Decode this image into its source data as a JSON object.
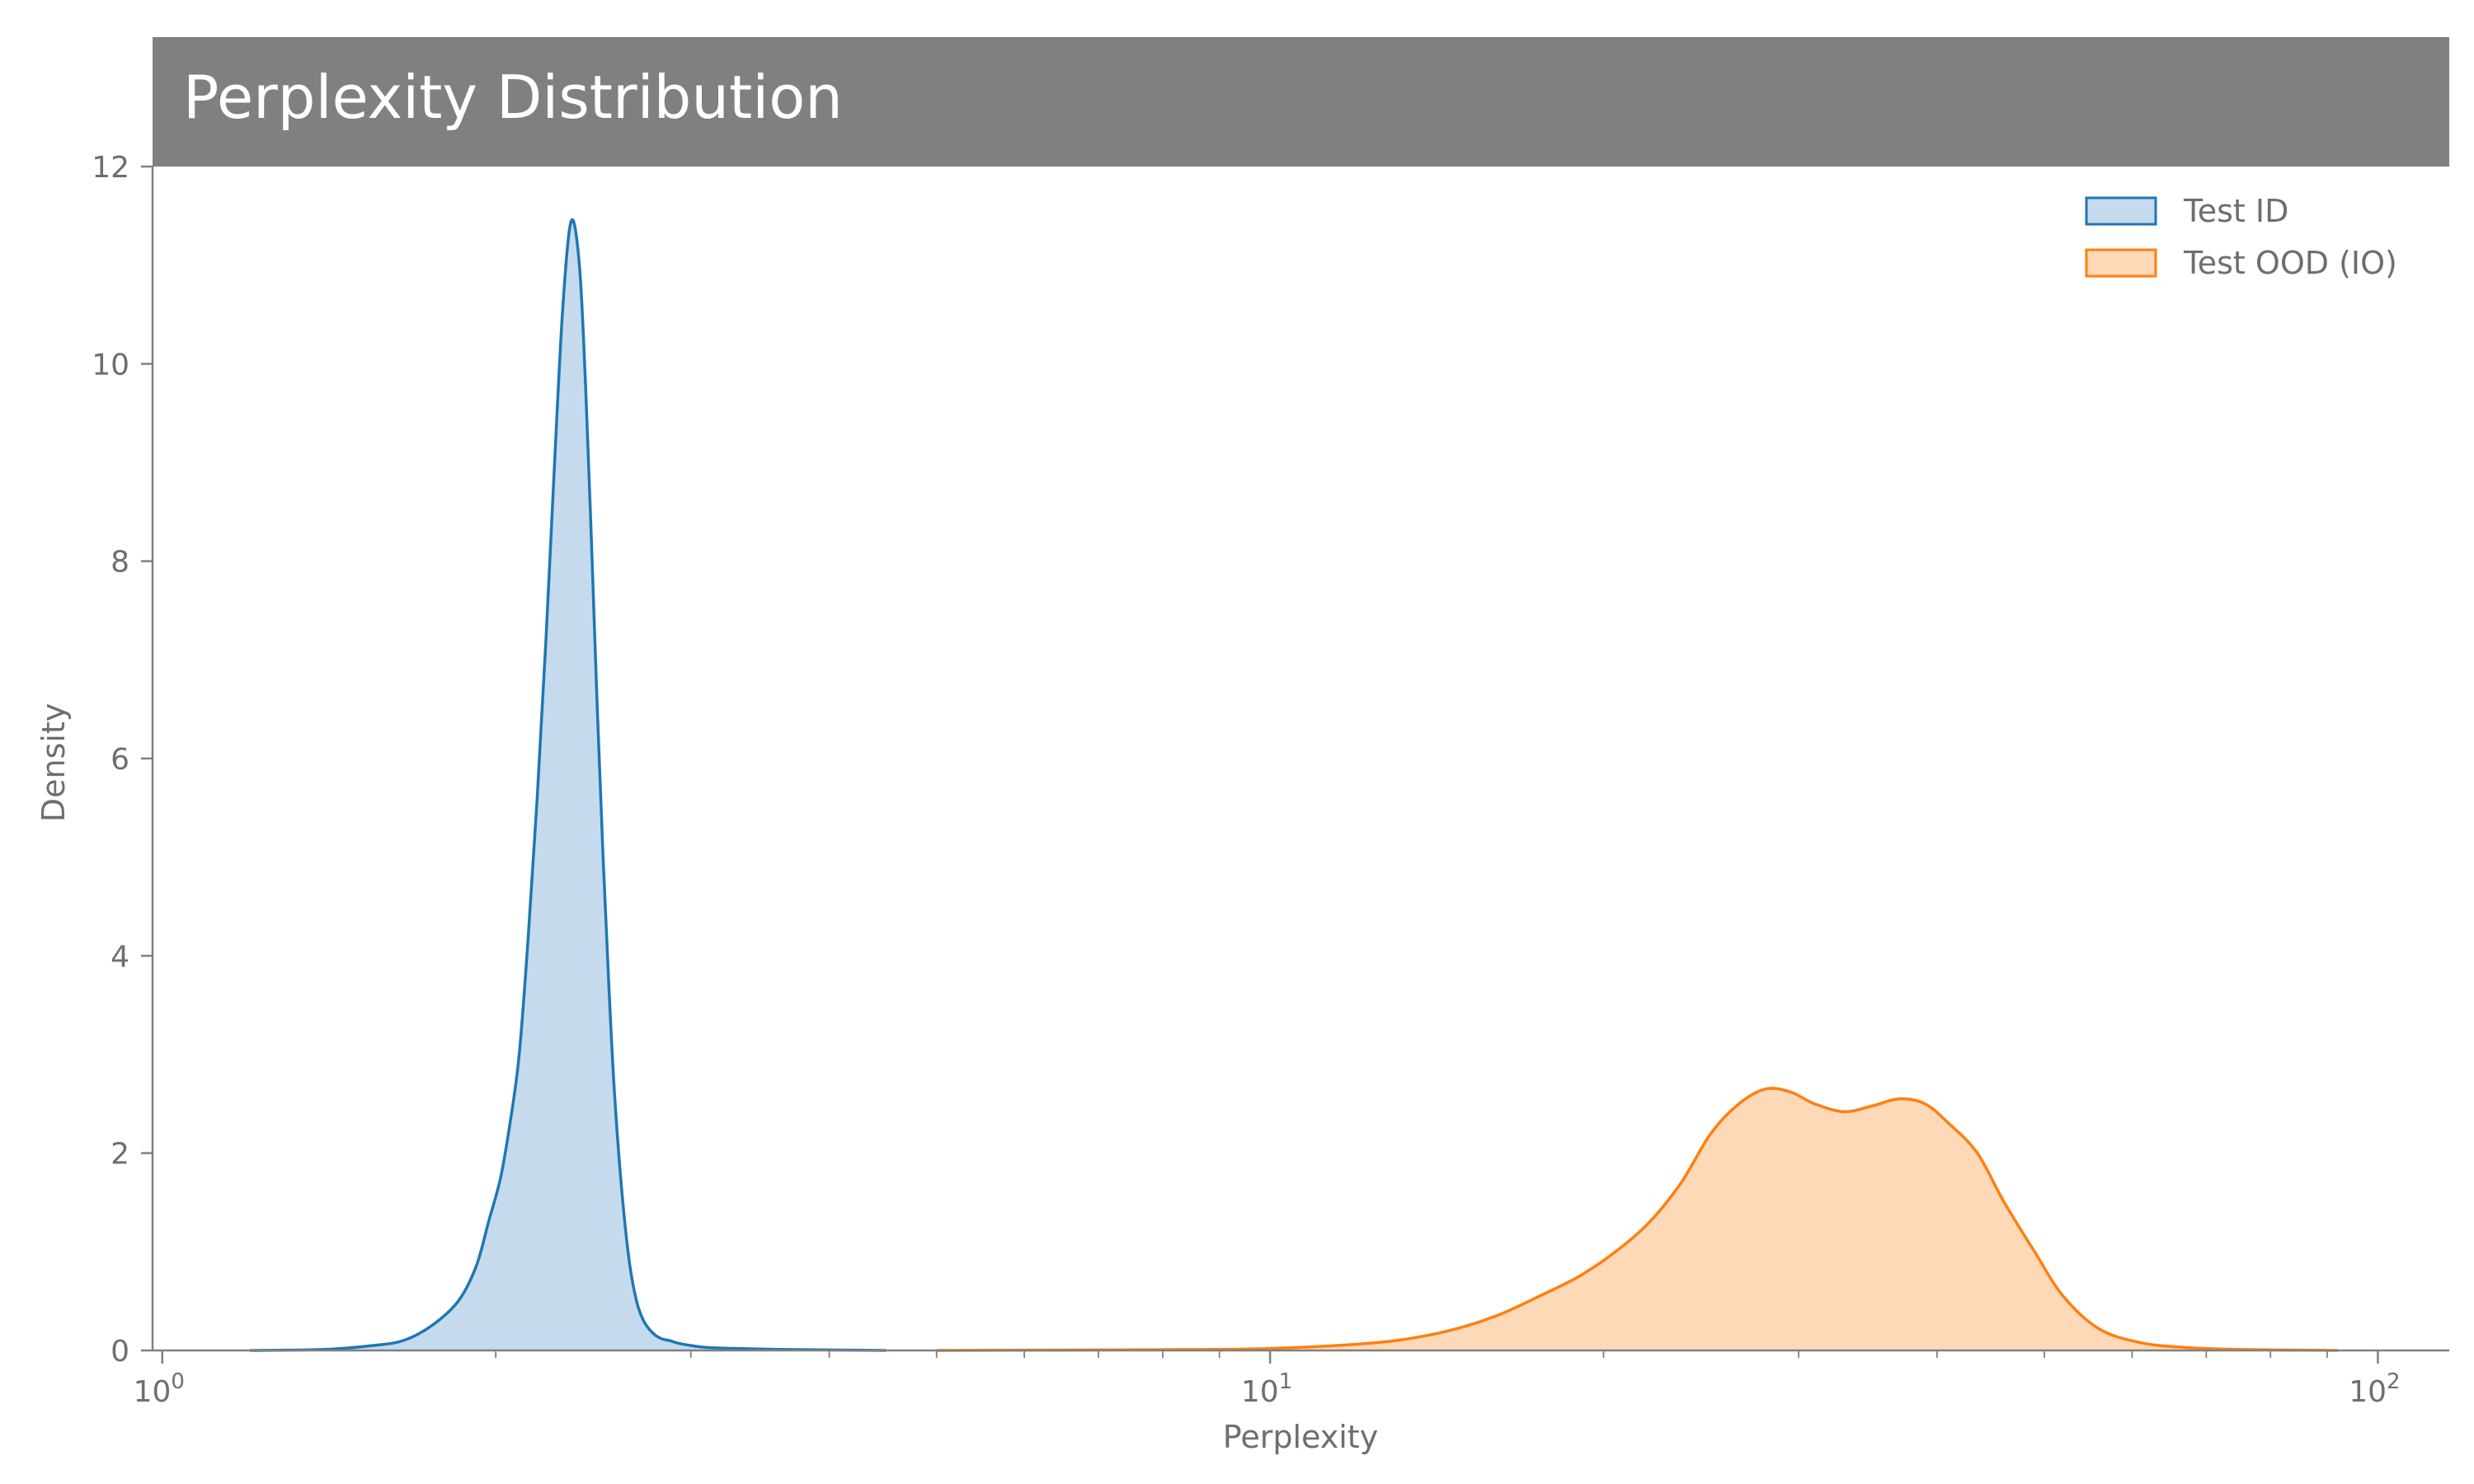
{
  "chart_data": {
    "type": "area",
    "title": "Perplexity Distribution",
    "xlabel": "Perplexity",
    "ylabel": "Density",
    "xscale": "log",
    "xlim": [
      0.98,
      116
    ],
    "ylim": [
      0,
      12
    ],
    "x_ticks": [
      {
        "base": "10",
        "exp": "0",
        "value": 1
      },
      {
        "base": "10",
        "exp": "1",
        "value": 10
      },
      {
        "base": "10",
        "exp": "2",
        "value": 100
      }
    ],
    "y_ticks": [
      "0",
      "2",
      "4",
      "6",
      "8",
      "10",
      "12"
    ],
    "legend_position": "top-right",
    "grid": false,
    "series": [
      {
        "name": "Test ID",
        "color": "#1f77b4",
        "fill": "#c5dbed",
        "x": [
          1.2,
          1.4,
          1.55,
          1.65,
          1.75,
          1.85,
          1.92,
          1.97,
          2.02,
          2.06,
          2.1,
          2.14,
          2.18,
          2.22,
          2.26,
          2.3,
          2.34,
          2.38,
          2.41,
          2.44,
          2.47,
          2.5,
          2.53,
          2.56,
          2.6,
          2.64,
          2.68,
          2.72,
          2.77,
          2.82,
          2.87,
          2.93,
          3.0,
          3.1,
          3.3,
          3.6,
          4.0,
          4.5
        ],
        "y": [
          0.0,
          0.01,
          0.05,
          0.1,
          0.25,
          0.5,
          0.85,
          1.3,
          1.75,
          2.3,
          3.0,
          4.2,
          5.6,
          7.2,
          9.0,
          10.6,
          11.45,
          11.0,
          9.8,
          8.2,
          6.5,
          5.0,
          3.7,
          2.6,
          1.6,
          0.9,
          0.5,
          0.3,
          0.18,
          0.12,
          0.1,
          0.07,
          0.05,
          0.03,
          0.02,
          0.01,
          0.005,
          0.0
        ]
      },
      {
        "name": "Test OOD (IO)",
        "color": "#ff7f0e",
        "fill": "#fdd9b8",
        "x": [
          5.0,
          7.0,
          9.0,
          10.0,
          11.5,
          13.0,
          14.5,
          16.0,
          17.5,
          19.0,
          20.5,
          22.0,
          23.5,
          25.0,
          26.5,
          28.0,
          29.5,
          31.0,
          33.0,
          35.0,
          37.0,
          39.0,
          41.0,
          43.5,
          46.0,
          49.0,
          52.0,
          56.0,
          61.0,
          67.0,
          75.0,
          85.0,
          92.0
        ],
        "y": [
          0.0,
          0.005,
          0.01,
          0.02,
          0.05,
          0.1,
          0.2,
          0.35,
          0.55,
          0.75,
          1.0,
          1.3,
          1.7,
          2.2,
          2.5,
          2.65,
          2.62,
          2.5,
          2.42,
          2.48,
          2.55,
          2.5,
          2.3,
          2.0,
          1.5,
          1.0,
          0.55,
          0.22,
          0.08,
          0.03,
          0.01,
          0.003,
          0.0
        ]
      }
    ]
  }
}
